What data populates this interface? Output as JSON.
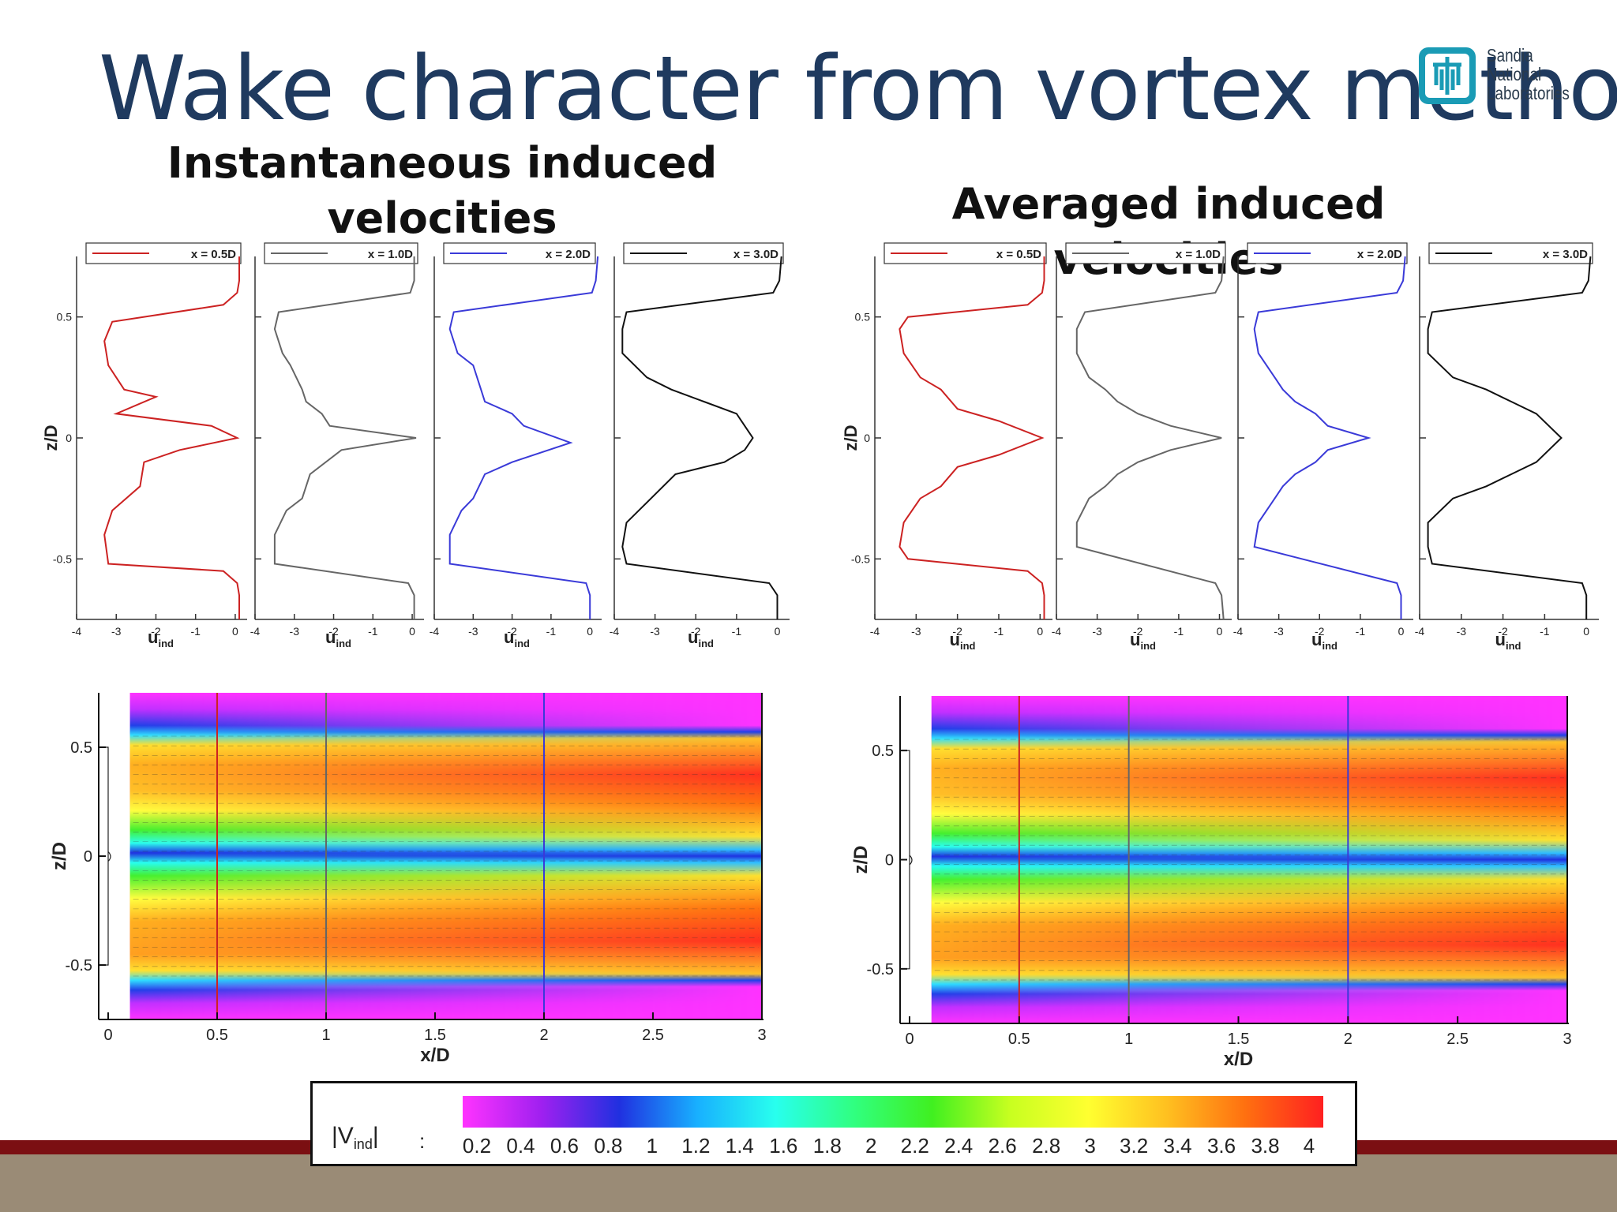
{
  "slide": {
    "title": "Wake character from vortex method",
    "left_subtitle": "Instantaneous induced velocities",
    "right_subtitle": "Averaged induced velocities"
  },
  "logo": {
    "lines": [
      "Sandia",
      "National",
      "Laboratories"
    ],
    "color": "#1a9bb5"
  },
  "colors": {
    "title": "#1f3a5f",
    "footer_bar": "#7b0f12",
    "footer_strip": "#9a8b76"
  },
  "chart_data": [
    {
      "panel": "instantaneous-profiles",
      "type": "line",
      "ylabel": "z/D",
      "xlabel": "u_ind",
      "xlim": [
        -4,
        0.3
      ],
      "ylim": [
        -0.75,
        0.75
      ],
      "xticks": [
        "-4",
        "-3",
        "-2",
        "-1",
        "0"
      ],
      "yticks": [
        "0.5",
        "0",
        "-0.5"
      ],
      "series": [
        {
          "name": "x = 0.5D",
          "color": "#cc2222",
          "u": [
            0.1,
            0.1,
            0.05,
            -0.3,
            -3.1,
            -3.3,
            -3.2,
            -2.8,
            -2.0,
            -3.0,
            -0.6,
            0.05,
            -1.4,
            -2.3,
            -2.4,
            -3.1,
            -3.3,
            -3.2,
            -0.3,
            0.05,
            0.1,
            0.1
          ],
          "z": [
            0.75,
            0.65,
            0.6,
            0.55,
            0.48,
            0.4,
            0.3,
            0.2,
            0.17,
            0.1,
            0.05,
            0.0,
            -0.05,
            -0.1,
            -0.2,
            -0.3,
            -0.4,
            -0.52,
            -0.55,
            -0.6,
            -0.65,
            -0.75
          ]
        },
        {
          "name": "x = 1.0D",
          "color": "#666666",
          "u": [
            0.05,
            0.05,
            -0.05,
            -3.4,
            -3.5,
            -3.3,
            -3.1,
            -2.8,
            -2.7,
            -2.3,
            -2.1,
            0.1,
            -1.8,
            -2.6,
            -2.8,
            -3.2,
            -3.5,
            -3.5,
            -0.1,
            0.05,
            0.05
          ],
          "z": [
            0.75,
            0.65,
            0.6,
            0.52,
            0.45,
            0.35,
            0.3,
            0.2,
            0.15,
            0.1,
            0.05,
            0.0,
            -0.05,
            -0.15,
            -0.25,
            -0.3,
            -0.4,
            -0.52,
            -0.6,
            -0.65,
            -0.75
          ]
        },
        {
          "name": "x = 2.0D",
          "color": "#3a3ad8",
          "u": [
            0.2,
            0.15,
            0.05,
            -3.5,
            -3.6,
            -3.4,
            -3.0,
            -2.8,
            -2.7,
            -2.0,
            -1.7,
            -0.5,
            -2.0,
            -2.7,
            -3.0,
            -3.3,
            -3.6,
            -3.6,
            -0.1,
            0.0,
            0.0
          ],
          "z": [
            0.75,
            0.65,
            0.6,
            0.52,
            0.45,
            0.35,
            0.3,
            0.2,
            0.15,
            0.1,
            0.05,
            -0.02,
            -0.1,
            -0.15,
            -0.25,
            -0.3,
            -0.4,
            -0.52,
            -0.6,
            -0.65,
            -0.75
          ]
        },
        {
          "name": "x = 3.0D",
          "color": "#111111",
          "u": [
            0.1,
            0.05,
            -0.1,
            -3.7,
            -3.8,
            -3.8,
            -3.2,
            -2.6,
            -1.8,
            -1.0,
            -0.8,
            -0.6,
            -0.8,
            -1.3,
            -2.5,
            -3.1,
            -3.7,
            -3.8,
            -3.7,
            -0.2,
            0.0,
            0.0
          ],
          "z": [
            0.75,
            0.65,
            0.6,
            0.52,
            0.45,
            0.35,
            0.25,
            0.2,
            0.15,
            0.1,
            0.05,
            0.0,
            -0.05,
            -0.1,
            -0.15,
            -0.25,
            -0.35,
            -0.45,
            -0.52,
            -0.6,
            -0.65,
            -0.75
          ]
        }
      ]
    },
    {
      "panel": "averaged-profiles",
      "type": "line",
      "ylabel": "z/D",
      "xlabel": "u_ind",
      "xlim": [
        -4,
        0.3
      ],
      "ylim": [
        -0.75,
        0.75
      ],
      "xticks": [
        "-4",
        "-3",
        "-2",
        "-1",
        "0"
      ],
      "yticks": [
        "0.5",
        "0",
        "-0.5"
      ],
      "series": [
        {
          "name": "x = 0.5D",
          "color": "#cc2222",
          "u": [
            0.1,
            0.1,
            0.05,
            -0.3,
            -3.2,
            -3.4,
            -3.3,
            -2.9,
            -2.4,
            -2.0,
            -1.0,
            0.05,
            -1.0,
            -2.0,
            -2.4,
            -2.9,
            -3.3,
            -3.4,
            -3.2,
            -0.3,
            0.05,
            0.1,
            0.1
          ],
          "z": [
            0.75,
            0.65,
            0.6,
            0.55,
            0.5,
            0.45,
            0.35,
            0.25,
            0.2,
            0.12,
            0.07,
            0.0,
            -0.07,
            -0.12,
            -0.2,
            -0.25,
            -0.35,
            -0.45,
            -0.5,
            -0.55,
            -0.6,
            -0.65,
            -0.75
          ]
        },
        {
          "name": "x = 1.0D",
          "color": "#666666",
          "u": [
            0.1,
            0.05,
            -0.1,
            -3.3,
            -3.5,
            -3.5,
            -3.2,
            -2.8,
            -2.5,
            -2.0,
            -1.2,
            0.05,
            -1.2,
            -2.0,
            -2.5,
            -2.8,
            -3.2,
            -3.5,
            -3.5,
            -0.1,
            0.05,
            0.1
          ],
          "z": [
            0.75,
            0.65,
            0.6,
            0.52,
            0.45,
            0.35,
            0.25,
            0.2,
            0.15,
            0.1,
            0.05,
            0.0,
            -0.05,
            -0.1,
            -0.15,
            -0.2,
            -0.25,
            -0.35,
            -0.45,
            -0.6,
            -0.65,
            -0.75
          ]
        },
        {
          "name": "x = 2.0D",
          "color": "#3a3ad8",
          "u": [
            0.1,
            0.05,
            -0.1,
            -3.5,
            -3.6,
            -3.5,
            -3.1,
            -2.9,
            -2.6,
            -2.1,
            -1.8,
            -0.8,
            -1.8,
            -2.1,
            -2.6,
            -2.9,
            -3.1,
            -3.5,
            -3.6,
            -0.1,
            0.0,
            0.0
          ],
          "z": [
            0.75,
            0.65,
            0.6,
            0.52,
            0.45,
            0.35,
            0.25,
            0.2,
            0.15,
            0.1,
            0.05,
            0.0,
            -0.05,
            -0.1,
            -0.15,
            -0.2,
            -0.25,
            -0.35,
            -0.45,
            -0.6,
            -0.65,
            -0.75
          ]
        },
        {
          "name": "x = 3.0D",
          "color": "#111111",
          "u": [
            0.1,
            0.05,
            -0.1,
            -3.7,
            -3.8,
            -3.8,
            -3.2,
            -2.4,
            -1.8,
            -1.2,
            -0.6,
            -1.2,
            -1.8,
            -2.4,
            -3.2,
            -3.8,
            -3.8,
            -3.7,
            -0.1,
            0.0,
            0.0
          ],
          "z": [
            0.75,
            0.65,
            0.6,
            0.52,
            0.45,
            0.35,
            0.25,
            0.2,
            0.15,
            0.1,
            0.0,
            -0.1,
            -0.15,
            -0.2,
            -0.25,
            -0.35,
            -0.45,
            -0.52,
            -0.6,
            -0.65,
            -0.75
          ]
        }
      ]
    },
    {
      "panel": "instantaneous-contour",
      "type": "heatmap",
      "xlabel": "x/D",
      "ylabel": "z/D",
      "xlim": [
        0,
        3
      ],
      "ylim": [
        -0.75,
        0.75
      ],
      "xticks": [
        "0",
        "0.5",
        "1",
        "1.5",
        "2",
        "2.5",
        "3"
      ],
      "yticks": [
        "0.5",
        "0",
        "-0.5"
      ],
      "vertical_lines": [
        {
          "x": 0.5,
          "color": "#cc2222"
        },
        {
          "x": 1.0,
          "color": "#666666"
        },
        {
          "x": 2.0,
          "color": "#3a3ad8"
        },
        {
          "x": 3.0,
          "color": "#111111"
        }
      ]
    },
    {
      "panel": "averaged-contour",
      "type": "heatmap",
      "xlabel": "x/D",
      "ylabel": "z/D",
      "xlim": [
        0,
        3
      ],
      "ylim": [
        -0.75,
        0.75
      ],
      "xticks": [
        "0",
        "0.5",
        "1",
        "1.5",
        "2",
        "2.5",
        "3"
      ],
      "yticks": [
        "0.5",
        "0",
        "-0.5"
      ],
      "vertical_lines": [
        {
          "x": 0.5,
          "color": "#cc2222"
        },
        {
          "x": 1.0,
          "color": "#666666"
        },
        {
          "x": 2.0,
          "color": "#3a3ad8"
        },
        {
          "x": 3.0,
          "color": "#111111"
        }
      ]
    }
  ],
  "colorbar": {
    "label": "|V",
    "label_sub": "ind",
    "label_end": "|",
    "separator": ":",
    "ticks": [
      "0.2",
      "0.4",
      "0.6",
      "0.8",
      "1",
      "1.2",
      "1.4",
      "1.6",
      "1.8",
      "2",
      "2.2",
      "2.4",
      "2.6",
      "2.8",
      "3",
      "3.2",
      "3.4",
      "3.6",
      "3.8",
      "4"
    ],
    "stops": [
      "#ff33ff",
      "#a020f0",
      "#2030e0",
      "#18b0ff",
      "#28ffee",
      "#30ff80",
      "#40f020",
      "#c8ff20",
      "#ffff30",
      "#ffc020",
      "#ff7010",
      "#ff2020"
    ]
  }
}
